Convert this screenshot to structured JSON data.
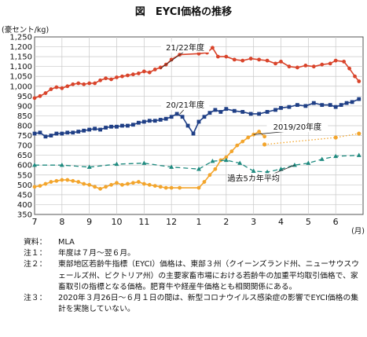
{
  "title": "図　EYCI価格の推移",
  "chart_data": {
    "type": "line",
    "ylabel": "(豪セント/kg)",
    "xlabel": "(月)",
    "ylim": [
      350,
      1250
    ],
    "yticks": [
      350,
      400,
      450,
      500,
      550,
      600,
      650,
      700,
      750,
      800,
      850,
      900,
      950,
      1000,
      1050,
      1100,
      1150,
      1200,
      1250
    ],
    "xlim": [
      0,
      12
    ],
    "xticks": [
      {
        "pos": 0,
        "label": "7"
      },
      {
        "pos": 1,
        "label": "8"
      },
      {
        "pos": 2,
        "label": "9"
      },
      {
        "pos": 3,
        "label": "10"
      },
      {
        "pos": 4,
        "label": "11"
      },
      {
        "pos": 5,
        "label": "12"
      },
      {
        "pos": 6,
        "label": "1"
      },
      {
        "pos": 7,
        "label": "2"
      },
      {
        "pos": 8,
        "label": "3"
      },
      {
        "pos": 9,
        "label": "4"
      },
      {
        "pos": 10,
        "label": "5"
      },
      {
        "pos": 11,
        "label": "6"
      }
    ],
    "grid": true,
    "series": [
      {
        "name": "21/22年度",
        "color": "#d9442b",
        "marker": "circle",
        "style": "solid",
        "points": [
          [
            0.0,
            940
          ],
          [
            0.2,
            950
          ],
          [
            0.4,
            965
          ],
          [
            0.6,
            985
          ],
          [
            0.8,
            995
          ],
          [
            1.0,
            990
          ],
          [
            1.2,
            1000
          ],
          [
            1.4,
            1010
          ],
          [
            1.6,
            1015
          ],
          [
            1.8,
            1010
          ],
          [
            2.0,
            1015
          ],
          [
            2.2,
            1015
          ],
          [
            2.4,
            1030
          ],
          [
            2.6,
            1040
          ],
          [
            2.8,
            1035
          ],
          [
            3.0,
            1045
          ],
          [
            3.2,
            1050
          ],
          [
            3.4,
            1055
          ],
          [
            3.6,
            1060
          ],
          [
            3.8,
            1065
          ],
          [
            4.0,
            1075
          ],
          [
            4.2,
            1070
          ],
          [
            4.4,
            1085
          ],
          [
            4.6,
            1095
          ],
          [
            4.8,
            1110
          ],
          [
            5.0,
            1135
          ],
          [
            5.3,
            1160
          ],
          [
            6.0,
            1165
          ],
          [
            6.3,
            1170
          ],
          [
            6.5,
            1195
          ],
          [
            6.7,
            1150
          ],
          [
            7.0,
            1150
          ],
          [
            7.3,
            1135
          ],
          [
            7.6,
            1130
          ],
          [
            7.9,
            1140
          ],
          [
            8.2,
            1135
          ],
          [
            8.5,
            1130
          ],
          [
            8.8,
            1115
          ],
          [
            9.0,
            1125
          ],
          [
            9.3,
            1100
          ],
          [
            9.6,
            1095
          ],
          [
            9.9,
            1105
          ],
          [
            10.2,
            1100
          ],
          [
            10.5,
            1110
          ],
          [
            10.8,
            1115
          ],
          [
            11.0,
            1130
          ],
          [
            11.3,
            1125
          ],
          [
            11.5,
            1090
          ],
          [
            11.7,
            1050
          ],
          [
            11.85,
            1025
          ]
        ]
      },
      {
        "name": "20/21年度",
        "color": "#1f3f86",
        "marker": "square",
        "style": "solid",
        "points": [
          [
            0.0,
            760
          ],
          [
            0.2,
            765
          ],
          [
            0.4,
            745
          ],
          [
            0.6,
            750
          ],
          [
            0.8,
            760
          ],
          [
            1.0,
            760
          ],
          [
            1.2,
            765
          ],
          [
            1.4,
            765
          ],
          [
            1.6,
            770
          ],
          [
            1.8,
            775
          ],
          [
            2.0,
            780
          ],
          [
            2.2,
            785
          ],
          [
            2.4,
            780
          ],
          [
            2.6,
            790
          ],
          [
            2.8,
            795
          ],
          [
            3.0,
            795
          ],
          [
            3.2,
            800
          ],
          [
            3.4,
            800
          ],
          [
            3.6,
            805
          ],
          [
            3.8,
            815
          ],
          [
            4.0,
            820
          ],
          [
            4.2,
            825
          ],
          [
            4.4,
            825
          ],
          [
            4.6,
            830
          ],
          [
            4.8,
            835
          ],
          [
            5.0,
            845
          ],
          [
            5.2,
            860
          ],
          [
            5.4,
            845
          ],
          [
            5.6,
            800
          ],
          [
            5.8,
            760
          ],
          [
            6.0,
            820
          ],
          [
            6.2,
            845
          ],
          [
            6.4,
            865
          ],
          [
            6.6,
            880
          ],
          [
            6.8,
            870
          ],
          [
            7.0,
            885
          ],
          [
            7.3,
            875
          ],
          [
            7.6,
            870
          ],
          [
            7.9,
            860
          ],
          [
            8.2,
            860
          ],
          [
            8.5,
            870
          ],
          [
            8.8,
            880
          ],
          [
            9.0,
            890
          ],
          [
            9.3,
            895
          ],
          [
            9.6,
            905
          ],
          [
            9.9,
            900
          ],
          [
            10.2,
            915
          ],
          [
            10.5,
            905
          ],
          [
            10.8,
            905
          ],
          [
            11.0,
            895
          ],
          [
            11.2,
            905
          ],
          [
            11.4,
            915
          ],
          [
            11.6,
            920
          ],
          [
            11.85,
            935
          ]
        ]
      },
      {
        "name": "2019/20年度",
        "color": "#f3a52c",
        "marker": "circle",
        "style": "solid",
        "points": [
          [
            0.0,
            490
          ],
          [
            0.2,
            495
          ],
          [
            0.4,
            505
          ],
          [
            0.6,
            515
          ],
          [
            0.8,
            520
          ],
          [
            1.0,
            525
          ],
          [
            1.2,
            525
          ],
          [
            1.4,
            520
          ],
          [
            1.6,
            515
          ],
          [
            1.8,
            505
          ],
          [
            2.0,
            500
          ],
          [
            2.2,
            490
          ],
          [
            2.4,
            480
          ],
          [
            2.6,
            490
          ],
          [
            2.8,
            500
          ],
          [
            3.0,
            510
          ],
          [
            3.2,
            500
          ],
          [
            3.4,
            505
          ],
          [
            3.6,
            510
          ],
          [
            3.8,
            515
          ],
          [
            4.0,
            505
          ],
          [
            4.2,
            500
          ],
          [
            4.4,
            495
          ],
          [
            4.6,
            490
          ],
          [
            4.8,
            485
          ],
          [
            5.0,
            485
          ],
          [
            5.3,
            485
          ],
          [
            6.0,
            485
          ],
          [
            6.2,
            515
          ],
          [
            6.4,
            550
          ],
          [
            6.6,
            580
          ],
          [
            6.8,
            625
          ],
          [
            7.0,
            640
          ],
          [
            7.2,
            670
          ],
          [
            7.4,
            700
          ],
          [
            7.6,
            720
          ],
          [
            7.8,
            740
          ],
          [
            8.0,
            755
          ],
          [
            8.2,
            770
          ],
          [
            8.4,
            745
          ]
        ]
      },
      {
        "name": "2019/20年度",
        "color": "#f3a52c",
        "marker": "circle",
        "style": "dotted",
        "points": [
          [
            8.4,
            705
          ],
          [
            11.0,
            740
          ],
          [
            11.85,
            760
          ]
        ]
      },
      {
        "name": "過去5カ年平均",
        "color": "#1e8a7f",
        "marker": "triangle",
        "style": "dashed",
        "points": [
          [
            0.0,
            600
          ],
          [
            1.0,
            600
          ],
          [
            2.0,
            590
          ],
          [
            3.0,
            605
          ],
          [
            4.0,
            610
          ],
          [
            5.0,
            590
          ],
          [
            6.0,
            580
          ],
          [
            6.5,
            620
          ],
          [
            7.0,
            625
          ],
          [
            7.5,
            610
          ],
          [
            8.0,
            570
          ],
          [
            8.5,
            565
          ],
          [
            9.0,
            580
          ],
          [
            9.5,
            600
          ],
          [
            10.0,
            610
          ],
          [
            10.5,
            630
          ],
          [
            11.0,
            645
          ],
          [
            11.85,
            650
          ]
        ]
      }
    ],
    "annotations": [
      {
        "text": "21/22年度",
        "series": 0
      },
      {
        "text": "20/21年度",
        "series": 1
      },
      {
        "text": "2019/20年度",
        "series": 2
      },
      {
        "text": "過去5カ年平均",
        "series": 4
      }
    ]
  },
  "notes": [
    {
      "key": "資料：",
      "text": "MLA"
    },
    {
      "key": "注１：",
      "text": "年度は７月～翌６月。"
    },
    {
      "key": "注２：",
      "text": "東部地区若齢牛指標（EYCI）価格は、東部３州（クイーンズランド州、ニューサウスウェールズ州、ビクトリア州）の主要家畜市場における若齢牛の加重平均取引価格で、家畜取引の指標となる価格。肥育牛や経産牛価格とも相関関係にある。"
    },
    {
      "key": "注３：",
      "text": "2020年３月26日～６月１日の間は、新型コロナウイルス感染症の影響でEYCI価格の集計を実施していない。"
    }
  ]
}
